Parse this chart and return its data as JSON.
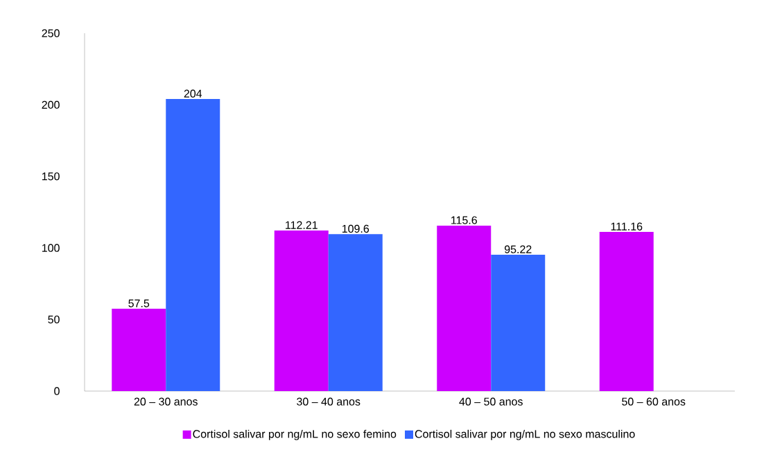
{
  "chart_data": {
    "type": "bar",
    "categories": [
      "20 – 30 anos",
      "30 – 40 anos",
      "40 – 50 anos",
      "50 – 60 anos"
    ],
    "series": [
      {
        "name": "Cortisol salivar por ng/mL no sexo femino",
        "color": "#cc00ff",
        "values": [
          57.5,
          112.21,
          115.6,
          111.16
        ]
      },
      {
        "name": "Cortisol salivar por ng/mL no sexo masculino",
        "color": "#3366ff",
        "values": [
          204,
          109.6,
          95.22,
          null
        ]
      }
    ],
    "ylim": [
      0,
      250
    ],
    "yticks": [
      0,
      50,
      100,
      150,
      200,
      250
    ],
    "grid": false,
    "legend": "bottom",
    "data_labels": true
  }
}
